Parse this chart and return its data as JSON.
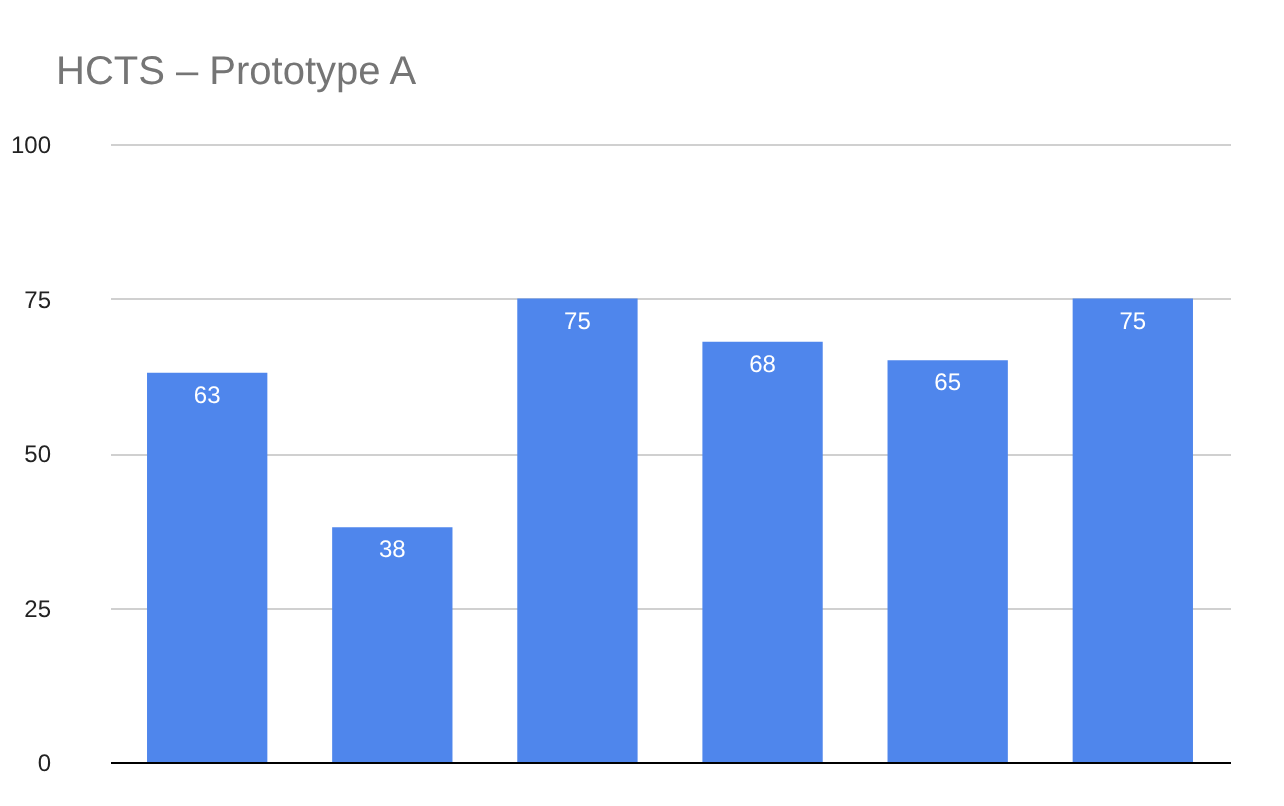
{
  "chart_data": {
    "type": "bar",
    "title": "HCTS – Prototype A",
    "categories": [
      null,
      null,
      null,
      null,
      null,
      null
    ],
    "values": [
      63,
      38,
      75,
      68,
      65,
      75
    ],
    "color": "#4f86ec",
    "ylim": [
      0,
      100
    ],
    "yticks": [
      0,
      25,
      50,
      75,
      100
    ],
    "grid": "y",
    "data_labels": true
  }
}
